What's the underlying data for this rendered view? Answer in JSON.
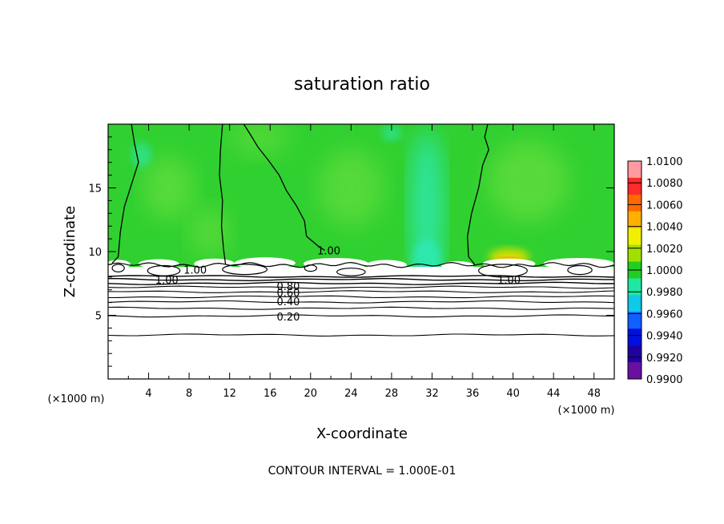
{
  "chart_data": {
    "type": "heatmap",
    "title": "saturation ratio",
    "xlabel": "X-coordinate",
    "ylabel": "Z-coordinate",
    "x_unit_left": "(×1000 m)",
    "x_unit_right": "(×1000 m)",
    "xlim": [
      0,
      50
    ],
    "ylim": [
      0,
      20
    ],
    "x_ticks": [
      4,
      8,
      12,
      16,
      20,
      24,
      28,
      32,
      36,
      40,
      44,
      48
    ],
    "y_ticks": [
      5,
      10,
      15
    ],
    "colorbar": {
      "levels": [
        "1.0100",
        "1.0080",
        "1.0060",
        "1.0040",
        "1.0020",
        "1.0000",
        "0.9980",
        "0.9960",
        "0.9940",
        "0.9920",
        "0.9900"
      ],
      "colors": [
        "#ff9aa0",
        "#ff2a2a",
        "#ff6a00",
        "#ffb000",
        "#f0f000",
        "#a0e000",
        "#22cc22",
        "#20e8a0",
        "#10c8e8",
        "#1060ff",
        "#0010e0",
        "#2000a0",
        "#6a10a0"
      ]
    },
    "field_colors": {
      "background": "#30d030",
      "light_patch": "#5cdc3a",
      "cyan_patch": "#2ee8b0",
      "blue_patch": "#2a7aff",
      "yellow_patch": "#d8e000",
      "orange_patch": "#ff9000"
    },
    "contour_labels": [
      {
        "text": "1.00",
        "x": 21.8,
        "y": 10.1
      },
      {
        "text": "1.00",
        "x": 8.6,
        "y": 8.6
      },
      {
        "text": "1.00",
        "x": 5.8,
        "y": 7.8
      },
      {
        "text": "1.00",
        "x": 39.6,
        "y": 7.8
      },
      {
        "text": "0.80",
        "x": 17.8,
        "y": 7.3
      },
      {
        "text": "0.60",
        "x": 17.8,
        "y": 6.8
      },
      {
        "text": "0.40",
        "x": 17.8,
        "y": 6.1
      },
      {
        "text": "0.20",
        "x": 17.8,
        "y": 4.9
      }
    ],
    "cloud_base_z": 8.8,
    "dry_levels_z": [
      8.05,
      7.8,
      7.5,
      7.2,
      6.85,
      6.45,
      6.05,
      5.55,
      4.95,
      3.45
    ],
    "vertical_contours": [
      [
        [
          2.3,
          20
        ],
        [
          2.6,
          18.5
        ],
        [
          3.0,
          17.0
        ],
        [
          2.4,
          15.5
        ],
        [
          1.6,
          13.5
        ],
        [
          1.2,
          11.5
        ],
        [
          1.0,
          9.6
        ],
        [
          0.4,
          9.1
        ]
      ],
      [
        [
          11.3,
          20
        ],
        [
          11.1,
          18.0
        ],
        [
          11.0,
          16.0
        ],
        [
          11.3,
          14.0
        ],
        [
          11.2,
          12.0
        ],
        [
          11.4,
          10.2
        ],
        [
          11.6,
          9.0
        ]
      ],
      [
        [
          13.4,
          20
        ],
        [
          14.2,
          19.0
        ],
        [
          14.8,
          18.2
        ],
        [
          15.8,
          17.2
        ],
        [
          16.9,
          16.0
        ],
        [
          17.6,
          14.8
        ],
        [
          18.6,
          13.6
        ],
        [
          19.4,
          12.4
        ],
        [
          19.6,
          11.2
        ],
        [
          20.8,
          10.4
        ],
        [
          21.4,
          10.1
        ]
      ],
      [
        [
          37.5,
          20
        ],
        [
          37.2,
          19.0
        ],
        [
          37.6,
          18.0
        ],
        [
          37.0,
          16.8
        ],
        [
          36.6,
          15.0
        ],
        [
          35.9,
          13.0
        ],
        [
          35.5,
          11.2
        ],
        [
          35.6,
          9.6
        ],
        [
          36.2,
          9.0
        ]
      ]
    ],
    "grid": false,
    "legend_position": "right",
    "footer": "CONTOUR INTERVAL = 1.000E-01"
  }
}
